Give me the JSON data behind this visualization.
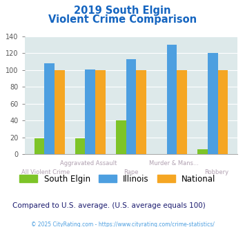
{
  "title_line1": "2019 South Elgin",
  "title_line2": "Violent Crime Comparison",
  "south_elgin": [
    19,
    19,
    40,
    0,
    6
  ],
  "illinois": [
    108,
    101,
    113,
    130,
    120
  ],
  "national": [
    100,
    100,
    100,
    100,
    100
  ],
  "top_labels": [
    "",
    "Aggravated Assault",
    "",
    "Murder & Mans...",
    ""
  ],
  "bot_labels": [
    "All Violent Crime",
    "",
    "Rape",
    "",
    "Robbery"
  ],
  "colors": {
    "south_elgin": "#7dc428",
    "illinois": "#4d9fe0",
    "national": "#f5a623"
  },
  "ylim": [
    0,
    140
  ],
  "yticks": [
    0,
    20,
    40,
    60,
    80,
    100,
    120,
    140
  ],
  "background_color": "#dde9ea",
  "title_color": "#1565c0",
  "subtitle_note": "Compared to U.S. average. (U.S. average equals 100)",
  "subtitle_note_color": "#1a1a6e",
  "footer": "© 2025 CityRating.com - https://www.cityrating.com/crime-statistics/",
  "footer_color": "#4d9fe0",
  "legend_labels": [
    "South Elgin",
    "Illinois",
    "National"
  ],
  "xlabel_top_color": "#b0a0b0",
  "xlabel_bot_color": "#b0a0b0"
}
